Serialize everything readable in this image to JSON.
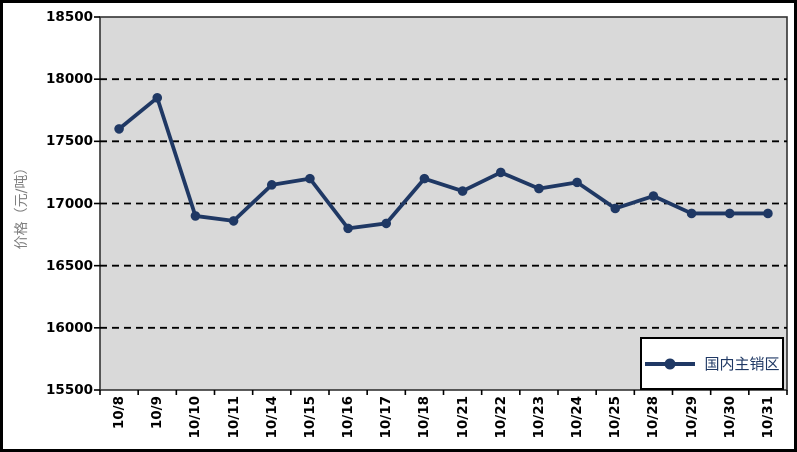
{
  "figure": {
    "background": "#FFFFFF",
    "outer_border_color": "#000000",
    "plot_background": "#D9D9D9",
    "axis_color": "#333333",
    "grid_color": "#000000",
    "tick_label_color": "#000000",
    "y_title_color": "#808080"
  },
  "chart_data": {
    "type": "line",
    "title": "",
    "xlabel": "",
    "ylabel": "价格（元/吨）",
    "ylim": [
      15500,
      18500
    ],
    "yticks": [
      18500,
      18000,
      17500,
      17000,
      16500,
      16000,
      15500
    ],
    "grid": "horizontal dashed black lines at interior yticks",
    "legend_position": "bottom-right inside plot, white box with black border",
    "categories": [
      "10/8",
      "10/9",
      "10/10",
      "10/11",
      "10/14",
      "10/15",
      "10/16",
      "10/17",
      "10/18",
      "10/21",
      "10/22",
      "10/23",
      "10/24",
      "10/25",
      "10/28",
      "10/29",
      "10/30",
      "10/31"
    ],
    "series": [
      {
        "name": "国内主销区",
        "color": "#1F3864",
        "marker": "circle",
        "values": [
          17600,
          17850,
          16900,
          16860,
          17150,
          17200,
          16800,
          16840,
          17200,
          17100,
          17250,
          17120,
          17170,
          16960,
          17060,
          16920,
          16920,
          16920
        ]
      }
    ]
  }
}
